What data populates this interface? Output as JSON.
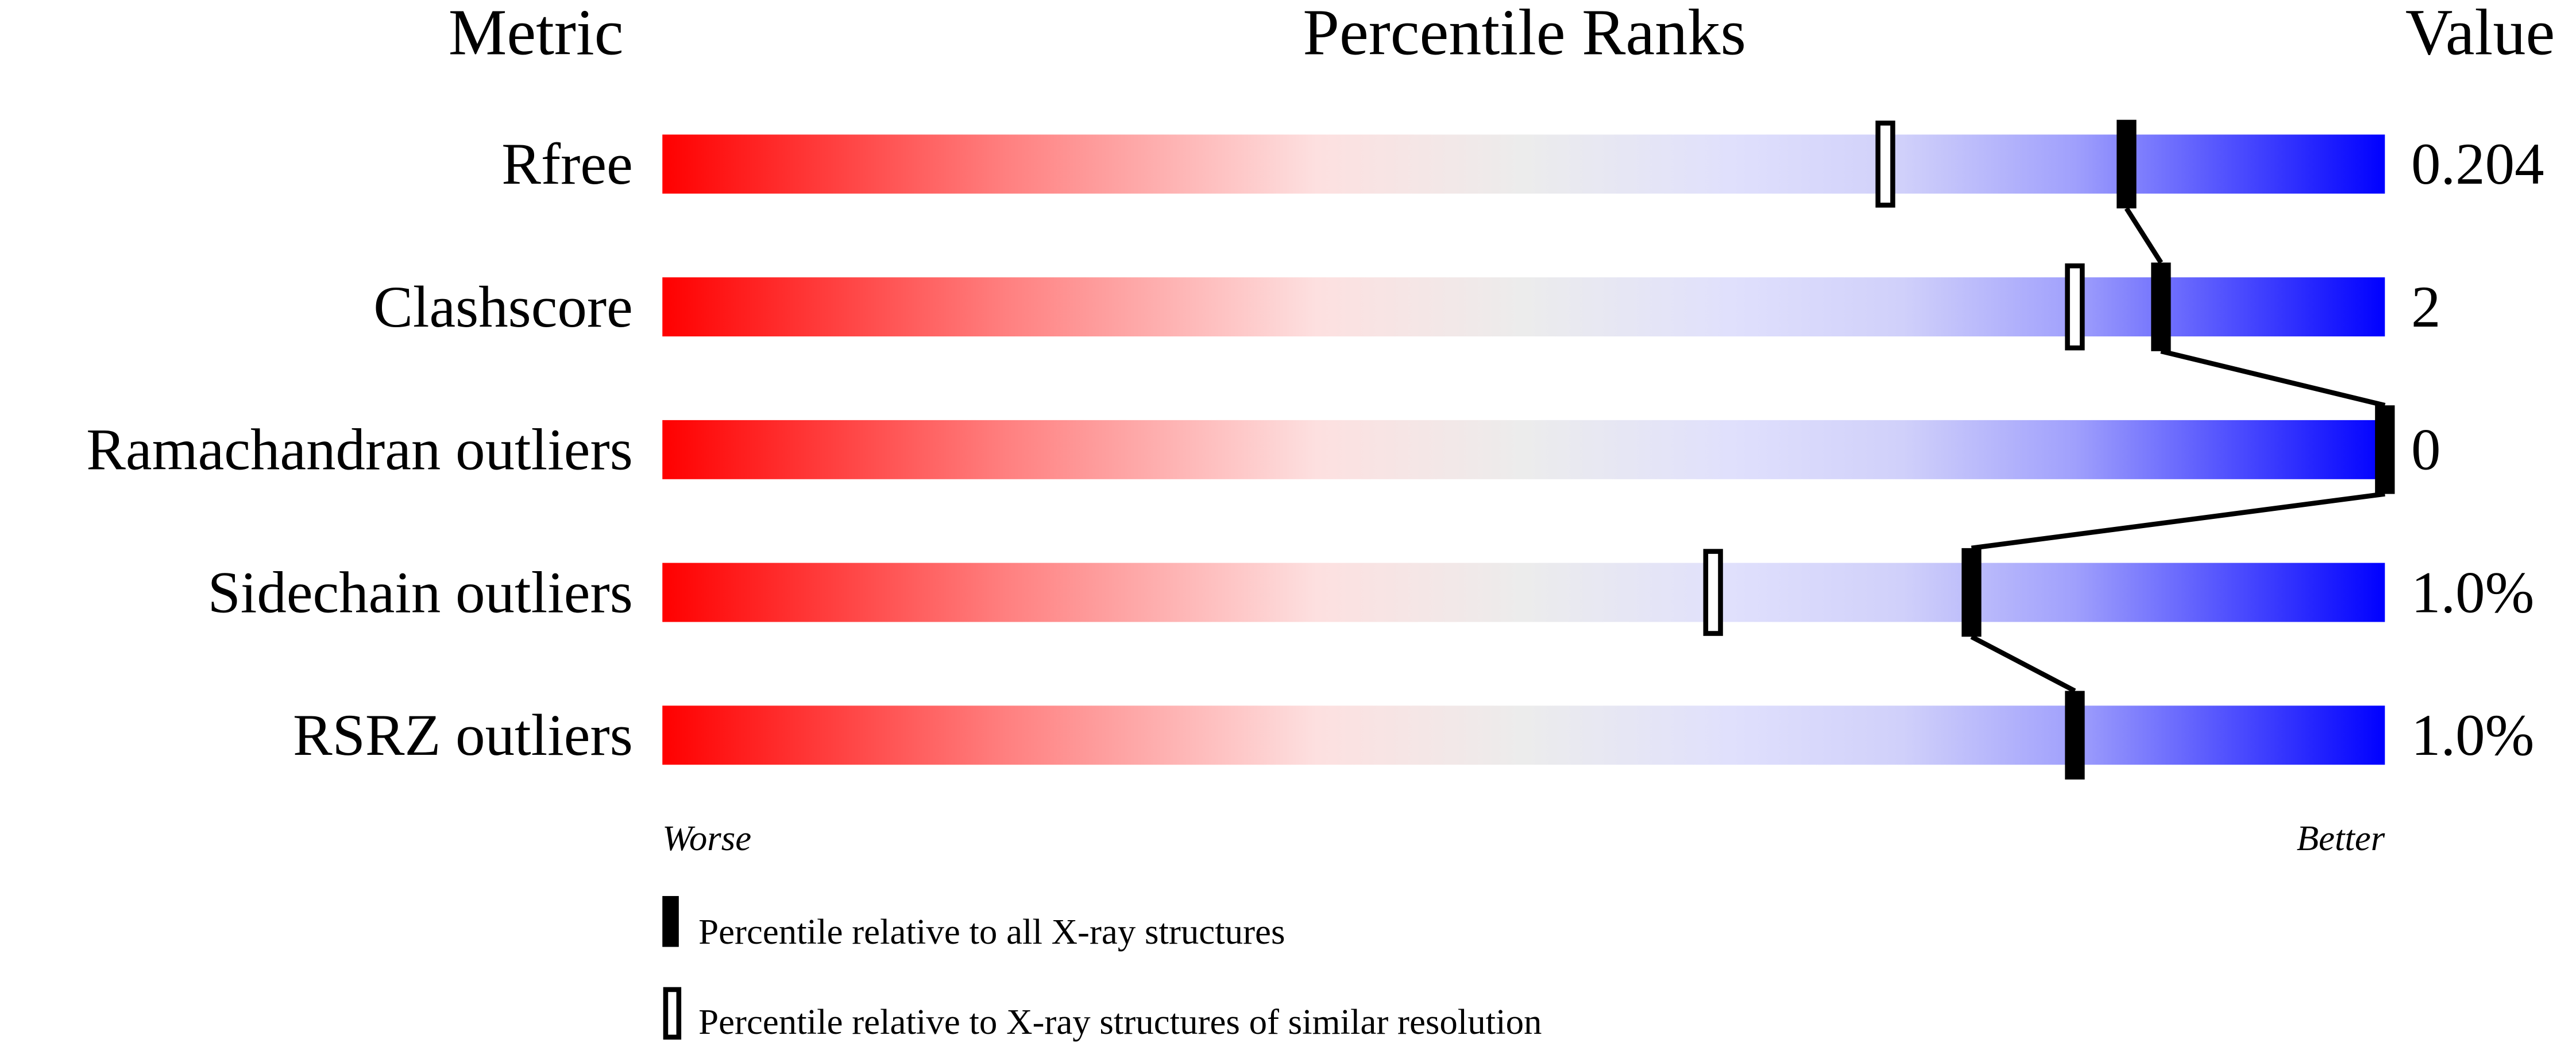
{
  "chart_data": {
    "type": "bar",
    "headers": {
      "metric": "Metric",
      "percentile": "Percentile Ranks",
      "value": "Value"
    },
    "xlim": [
      0,
      100
    ],
    "axis_labels": {
      "left": "Worse",
      "right": "Better"
    },
    "gradient_colors": [
      "#ff0000",
      "#ff8080",
      "#fde0e0",
      "#ececec",
      "#e0e0fc",
      "#d0d0fa",
      "#a0a0fc",
      "#0000ff"
    ],
    "metrics": [
      {
        "name": "Rfree",
        "value": "0.204",
        "percentile_all": 85,
        "percentile_similar": 71
      },
      {
        "name": "Clashscore",
        "value": "2",
        "percentile_all": 87,
        "percentile_similar": 82
      },
      {
        "name": "Ramachandran outliers",
        "value": "0",
        "percentile_all": 100,
        "percentile_similar": null
      },
      {
        "name": "Sidechain outliers",
        "value": "1.0%",
        "percentile_all": 76,
        "percentile_similar": 61
      },
      {
        "name": "RSRZ outliers",
        "value": "1.0%",
        "percentile_all": 82,
        "percentile_similar": null
      }
    ],
    "legend": [
      {
        "marker": "filled",
        "label": "Percentile relative to all X-ray structures"
      },
      {
        "marker": "open",
        "label": "Percentile relative to X-ray structures of similar resolution"
      }
    ]
  }
}
